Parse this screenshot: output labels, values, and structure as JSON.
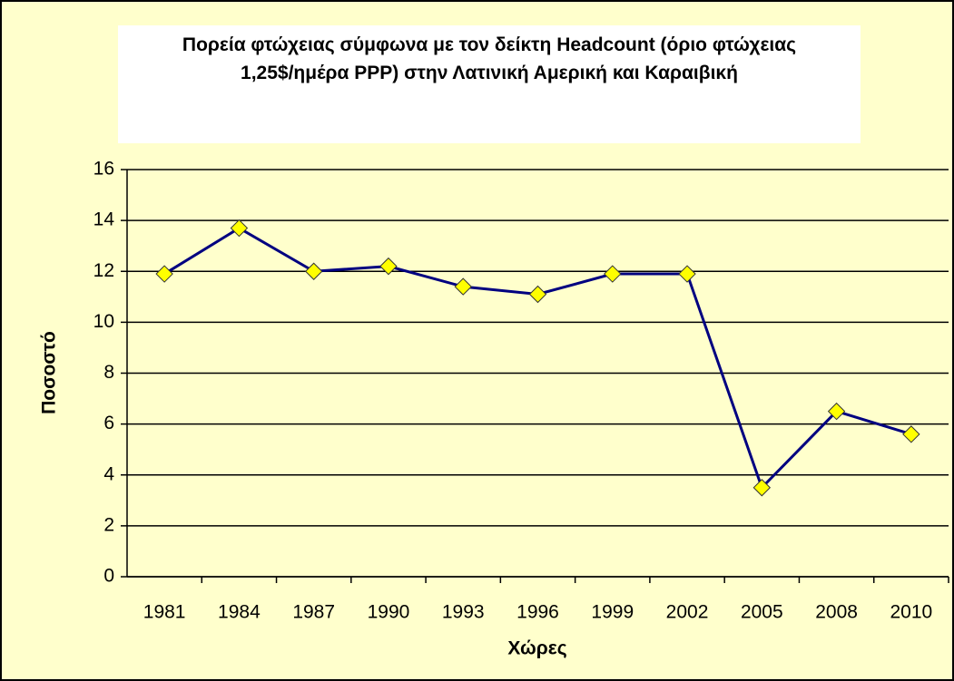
{
  "chart_data": {
    "type": "line",
    "title": "Πορεία φτώχειας σύμφωνα με τον δείκτη Headcount (όριο φτώχειας 1,25$/ημέρα PPP) στην Λατινική Αμερική και Καραιβική",
    "x_label": "Χώρες",
    "y_label": "Ποσοστό",
    "categories": [
      "1981",
      "1984",
      "1987",
      "1990",
      "1993",
      "1996",
      "1999",
      "2002",
      "2005",
      "2008",
      "2010"
    ],
    "series": [
      {
        "name": "Headcount",
        "color": "#000080",
        "marker_color": "#ffff00",
        "values": [
          11.9,
          13.7,
          12.0,
          12.2,
          11.4,
          11.1,
          11.9,
          11.9,
          3.5,
          6.5,
          5.6
        ]
      }
    ],
    "ylim": [
      0,
      16
    ],
    "yticks": [
      0,
      2,
      4,
      6,
      8,
      10,
      12,
      14,
      16
    ],
    "grid": true
  }
}
